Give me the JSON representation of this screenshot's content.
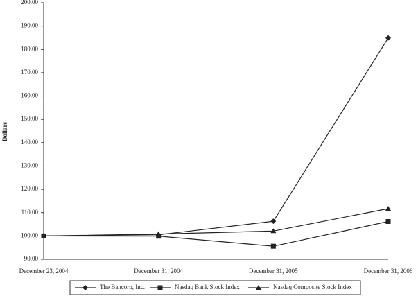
{
  "chart_data": {
    "type": "line",
    "y_label": "Dollars",
    "categories": [
      "December 23, 2004",
      "December 31, 2004",
      "December 31, 2005",
      "December 31, 2006"
    ],
    "series": [
      {
        "name": "The Bancorp, Inc.",
        "color": "#222222",
        "marker": "diamond",
        "values": [
          100,
          100.5,
          106.3,
          184.9
        ]
      },
      {
        "name": "Nasdaq Bank Stock Index",
        "color": "#222222",
        "marker": "square",
        "values": [
          100,
          99.9,
          95.6,
          106.2
        ]
      },
      {
        "name": "Nasdaq Composite Stock Index",
        "color": "#222222",
        "marker": "triangle",
        "values": [
          100,
          100.8,
          102.1,
          111.7
        ]
      }
    ],
    "ylim": [
      90,
      200
    ],
    "yticks": [
      {
        "value": 90,
        "label": "90.00"
      },
      {
        "value": 100,
        "label": "100.00"
      },
      {
        "value": 110,
        "label": "110.00"
      },
      {
        "value": 120,
        "label": "120.00"
      },
      {
        "value": 130,
        "label": "130.00"
      },
      {
        "value": 140,
        "label": "140.00"
      },
      {
        "value": 150,
        "label": "150.00"
      },
      {
        "value": 160,
        "label": "160.00"
      },
      {
        "value": 170,
        "label": "170.00"
      },
      {
        "value": 180,
        "label": "180.00"
      },
      {
        "value": 190,
        "label": "190.00"
      },
      {
        "value": 200,
        "label": "200.00"
      }
    ],
    "grid": false,
    "legend": "bottom"
  }
}
